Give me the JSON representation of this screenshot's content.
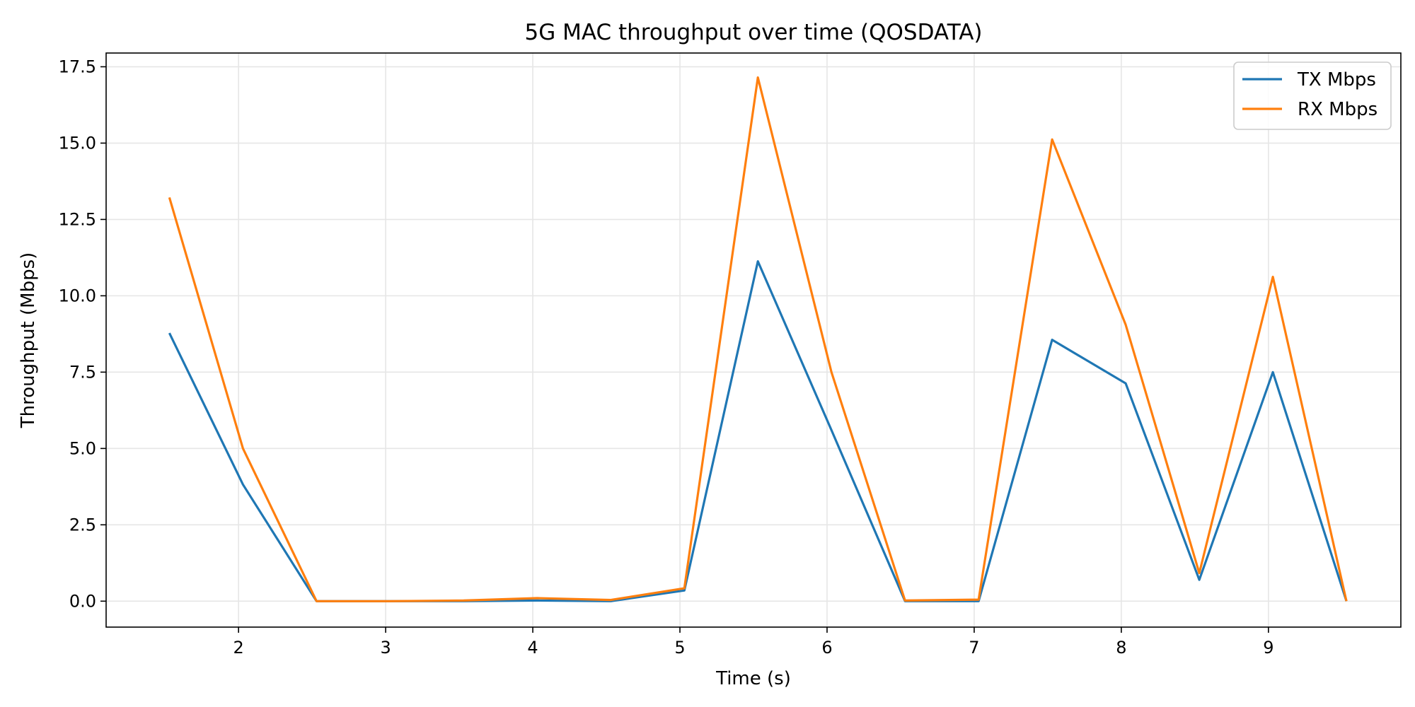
{
  "chart_data": {
    "type": "line",
    "title": "5G MAC throughput over time (QOSDATA)",
    "xlabel": "Time (s)",
    "ylabel": "Throughput (Mbps)",
    "xlim": [
      1.1,
      9.9
    ],
    "ylim": [
      -0.85,
      17.95
    ],
    "xticks": [
      2,
      3,
      4,
      5,
      6,
      7,
      8,
      9
    ],
    "yticks": [
      0.0,
      2.5,
      5.0,
      7.5,
      10.0,
      12.5,
      15.0,
      17.5
    ],
    "xtick_labels": [
      "2",
      "3",
      "4",
      "5",
      "6",
      "7",
      "8",
      "9"
    ],
    "ytick_labels": [
      "0.0",
      "2.5",
      "5.0",
      "7.5",
      "10.0",
      "12.5",
      "15.0",
      "17.5"
    ],
    "grid": true,
    "legend_position": "top-right",
    "x": [
      1.53,
      2.03,
      2.53,
      3.03,
      3.53,
      4.03,
      4.53,
      5.03,
      5.53,
      6.03,
      6.53,
      7.03,
      7.53,
      8.03,
      8.53,
      9.03,
      9.53
    ],
    "series": [
      {
        "name": "TX Mbps",
        "color": "#1f77b4",
        "values": [
          8.78,
          3.82,
          0.0,
          0.0,
          0.0,
          0.02,
          0.0,
          0.35,
          11.13,
          5.6,
          0.0,
          0.0,
          8.56,
          7.13,
          0.7,
          7.5,
          0.0
        ]
      },
      {
        "name": "RX Mbps",
        "color": "#ff7f0e",
        "values": [
          13.22,
          5.0,
          0.0,
          0.0,
          0.02,
          0.1,
          0.04,
          0.42,
          17.15,
          7.5,
          0.02,
          0.05,
          15.12,
          9.05,
          0.92,
          10.62,
          0.0
        ]
      }
    ]
  }
}
